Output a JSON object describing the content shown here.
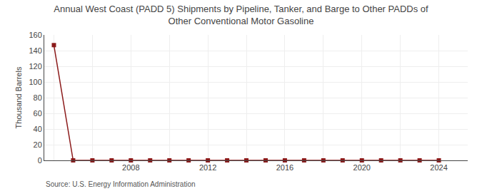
{
  "chart_data": {
    "type": "line",
    "title": "Annual West Coast (PADD 5) Shipments by Pipeline, Tanker, and Barge to Other PADDs of\nOther Conventional Motor Gasoline",
    "ylabel": "Thousand Barrels",
    "annotations": [
      "Source: U.S. Energy Information Administration"
    ],
    "x": [
      2004,
      2005,
      2006,
      2007,
      2008,
      2009,
      2010,
      2011,
      2012,
      2013,
      2014,
      2015,
      2016,
      2017,
      2018,
      2019,
      2020,
      2021,
      2022,
      2023,
      2024
    ],
    "values": [
      147,
      0,
      0,
      0,
      0,
      0,
      0,
      0,
      0,
      0,
      0,
      0,
      0,
      0,
      0,
      0,
      0,
      0,
      0,
      0,
      0
    ],
    "color": "#8b1a1a",
    "marker": "square",
    "xlim": [
      2003.5,
      2025.5
    ],
    "xticks": [
      {
        "value": 2004,
        "label": null
      },
      {
        "value": 2006,
        "label": null
      },
      2008,
      {
        "value": 2010,
        "label": null
      },
      2012,
      {
        "value": 2014,
        "label": null
      },
      2016,
      {
        "value": 2018,
        "label": null
      },
      2020,
      {
        "value": 2022,
        "label": null
      },
      2024
    ],
    "ylim": [
      0,
      160
    ],
    "yticks": [
      0,
      20,
      40,
      60,
      80,
      100,
      120,
      140,
      160
    ],
    "grid": true
  }
}
